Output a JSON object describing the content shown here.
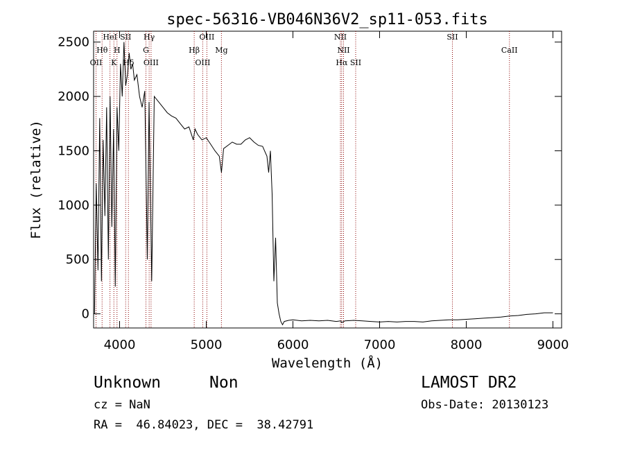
{
  "chart_data": {
    "type": "line",
    "title": "spec-56316-VB046N36V2_sp11-053.fits",
    "xlabel": "Wavelength (Å)",
    "ylabel": "Flux (relative)",
    "xlim": [
      3700,
      9100
    ],
    "ylim": [
      -130,
      2600
    ],
    "xticks": [
      4000,
      5000,
      6000,
      7000,
      8000,
      9000
    ],
    "yticks": [
      0,
      500,
      1000,
      1500,
      2000,
      2500
    ],
    "grid": false,
    "line_color": "#000000",
    "marker_color": "#8b0000",
    "series": [
      {
        "x": [
          3710,
          3730,
          3750,
          3770,
          3790,
          3810,
          3830,
          3850,
          3870,
          3890,
          3910,
          3930,
          3950,
          3970,
          3990,
          4010,
          4030,
          4050,
          4070,
          4090,
          4110,
          4130,
          4150,
          4170,
          4200,
          4230,
          4260,
          4290,
          4320,
          4340,
          4370,
          4400,
          4450,
          4500,
          4550,
          4600,
          4650,
          4700,
          4750,
          4800,
          4850,
          4870,
          4900,
          4950,
          5000,
          5050,
          5100,
          5150,
          5175,
          5200,
          5250,
          5300,
          5350,
          5400,
          5450,
          5500,
          5550,
          5600,
          5650,
          5700,
          5720,
          5740,
          5760,
          5780,
          5800,
          5820,
          5840,
          5860,
          5880,
          5900,
          5950,
          6000,
          6100,
          6200,
          6300,
          6400,
          6500,
          6550,
          6563,
          6600,
          6700,
          6800,
          6900,
          7000,
          7100,
          7200,
          7300,
          7400,
          7500,
          7600,
          7700,
          7800,
          7900,
          8000,
          8100,
          8200,
          8300,
          8400,
          8500,
          8600,
          8700,
          8800,
          8900,
          9000
        ],
        "y": [
          0,
          1200,
          400,
          1800,
          300,
          1600,
          900,
          1900,
          500,
          2000,
          800,
          1700,
          250,
          1900,
          1500,
          2300,
          2000,
          2500,
          2100,
          2200,
          2400,
          2250,
          2300,
          2150,
          2200,
          2000,
          1900,
          2050,
          500,
          1950,
          300,
          2000,
          1950,
          1900,
          1850,
          1820,
          1800,
          1750,
          1700,
          1720,
          1600,
          1700,
          1650,
          1600,
          1620,
          1560,
          1500,
          1450,
          1300,
          1520,
          1550,
          1580,
          1560,
          1560,
          1600,
          1620,
          1580,
          1550,
          1540,
          1450,
          1300,
          1500,
          1100,
          300,
          700,
          100,
          0,
          -70,
          -100,
          -70,
          -60,
          -55,
          -65,
          -60,
          -65,
          -60,
          -70,
          -65,
          -80,
          -65,
          -60,
          -65,
          -70,
          -75,
          -70,
          -75,
          -70,
          -70,
          -75,
          -65,
          -60,
          -55,
          -55,
          -50,
          -45,
          -40,
          -35,
          -30,
          -20,
          -15,
          -5,
          0,
          10,
          10
        ]
      }
    ],
    "line_markers": [
      {
        "label": "HeI",
        "x": 3889
      },
      {
        "label": "SII",
        "x": 4070
      },
      {
        "label": "Hθ",
        "x": 3798
      },
      {
        "label": "H",
        "x": 3970
      },
      {
        "label": "OII",
        "x": 3728
      },
      {
        "label": "K",
        "x": 3934
      },
      {
        "label": "Hδ",
        "x": 4102
      },
      {
        "label": "Hγ",
        "x": 4341
      },
      {
        "label": "G",
        "x": 4304
      },
      {
        "label": "OIII",
        "x": 4363
      },
      {
        "label": "OIII",
        "x": 5007
      },
      {
        "label": "Hβ",
        "x": 4861
      },
      {
        "label": "OIII",
        "x": 4959
      },
      {
        "label": "Mg",
        "x": 5175
      },
      {
        "label": "NII",
        "x": 6548
      },
      {
        "label": "NII",
        "x": 6584
      },
      {
        "label": "Hα",
        "x": 6563
      },
      {
        "label": "SII",
        "x": 6724
      },
      {
        "label": "SII",
        "x": 7840
      },
      {
        "label": "CaII",
        "x": 8498
      }
    ]
  },
  "info": {
    "object_class": "Unknown",
    "object_subclass": "Non",
    "cz": "cz = NaN",
    "coords": "RA =  46.84023, DEC =  38.42791",
    "survey": "LAMOST DR2",
    "obs_date": "Obs-Date: 20130123"
  }
}
